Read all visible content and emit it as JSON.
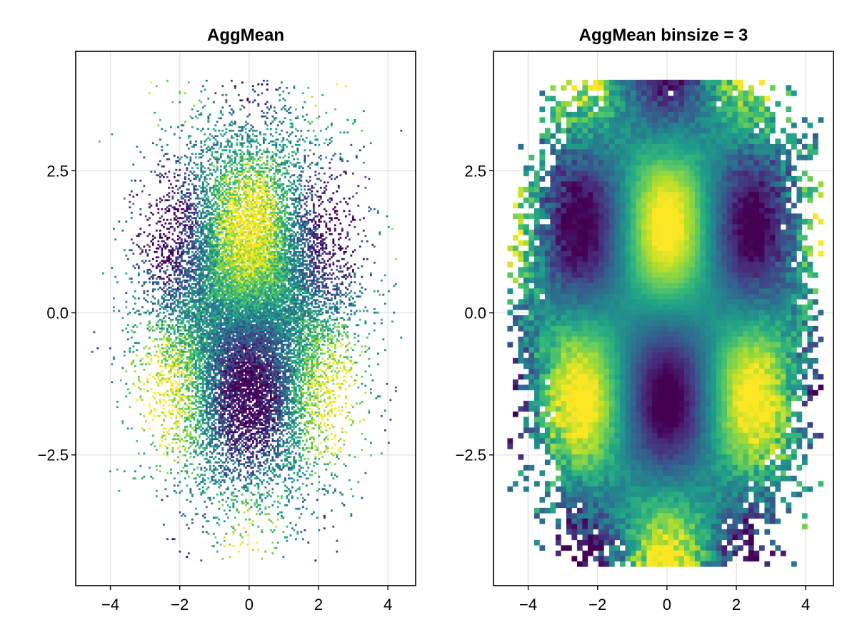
{
  "chart_data": [
    {
      "type": "heatmap",
      "title": "AggMean",
      "xlabel": "",
      "ylabel": "",
      "xlim": [
        -5.0,
        4.8
      ],
      "ylim": [
        -4.8,
        4.6
      ],
      "x_ticks": [
        -4,
        -2,
        0,
        2,
        4
      ],
      "x_tick_labels": [
        "−4",
        "−2",
        "0",
        "2",
        "4"
      ],
      "y_ticks": [
        -2.5,
        0.0,
        2.5
      ],
      "y_tick_labels": [
        "−2.5",
        "0.0",
        "2.5"
      ],
      "grid": true,
      "colormap": "viridis",
      "aggregation": "mean",
      "binsize": 1,
      "data_extent": {
        "x": [
          -4.6,
          4.4
        ],
        "y": [
          -4.4,
          4.1
        ]
      },
      "value_pattern": {
        "high_mean_regions": [
          {
            "x": 0,
            "y": 1.5
          },
          {
            "x": -2.5,
            "y": -1.5
          },
          {
            "x": 2.5,
            "y": -1.5
          }
        ],
        "low_mean_regions": [
          {
            "x": 0,
            "y": -1.5
          },
          {
            "x": -2.5,
            "y": 1.5
          },
          {
            "x": 2.5,
            "y": 1.5
          }
        ]
      }
    },
    {
      "type": "heatmap",
      "title": "AggMean binsize = 3",
      "xlabel": "",
      "ylabel": "",
      "xlim": [
        -5.0,
        4.8
      ],
      "ylim": [
        -4.8,
        4.6
      ],
      "x_ticks": [
        -4,
        -2,
        0,
        2,
        4
      ],
      "x_tick_labels": [
        "−4",
        "−2",
        "0",
        "2",
        "4"
      ],
      "y_ticks": [
        -2.5,
        0.0,
        2.5
      ],
      "y_tick_labels": [
        "−2.5",
        "0.0",
        "2.5"
      ],
      "grid": true,
      "colormap": "viridis",
      "aggregation": "mean",
      "binsize": 3,
      "data_extent": {
        "x": [
          -4.6,
          4.4
        ],
        "y": [
          -4.4,
          4.1
        ]
      },
      "value_pattern": {
        "high_mean_regions": [
          {
            "x": 0,
            "y": 1.5
          },
          {
            "x": -2.5,
            "y": -1.5
          },
          {
            "x": 2.5,
            "y": -1.5
          }
        ],
        "low_mean_regions": [
          {
            "x": 0,
            "y": -1.5
          },
          {
            "x": -2.5,
            "y": 1.5
          },
          {
            "x": 2.5,
            "y": 1.5
          }
        ]
      }
    }
  ]
}
